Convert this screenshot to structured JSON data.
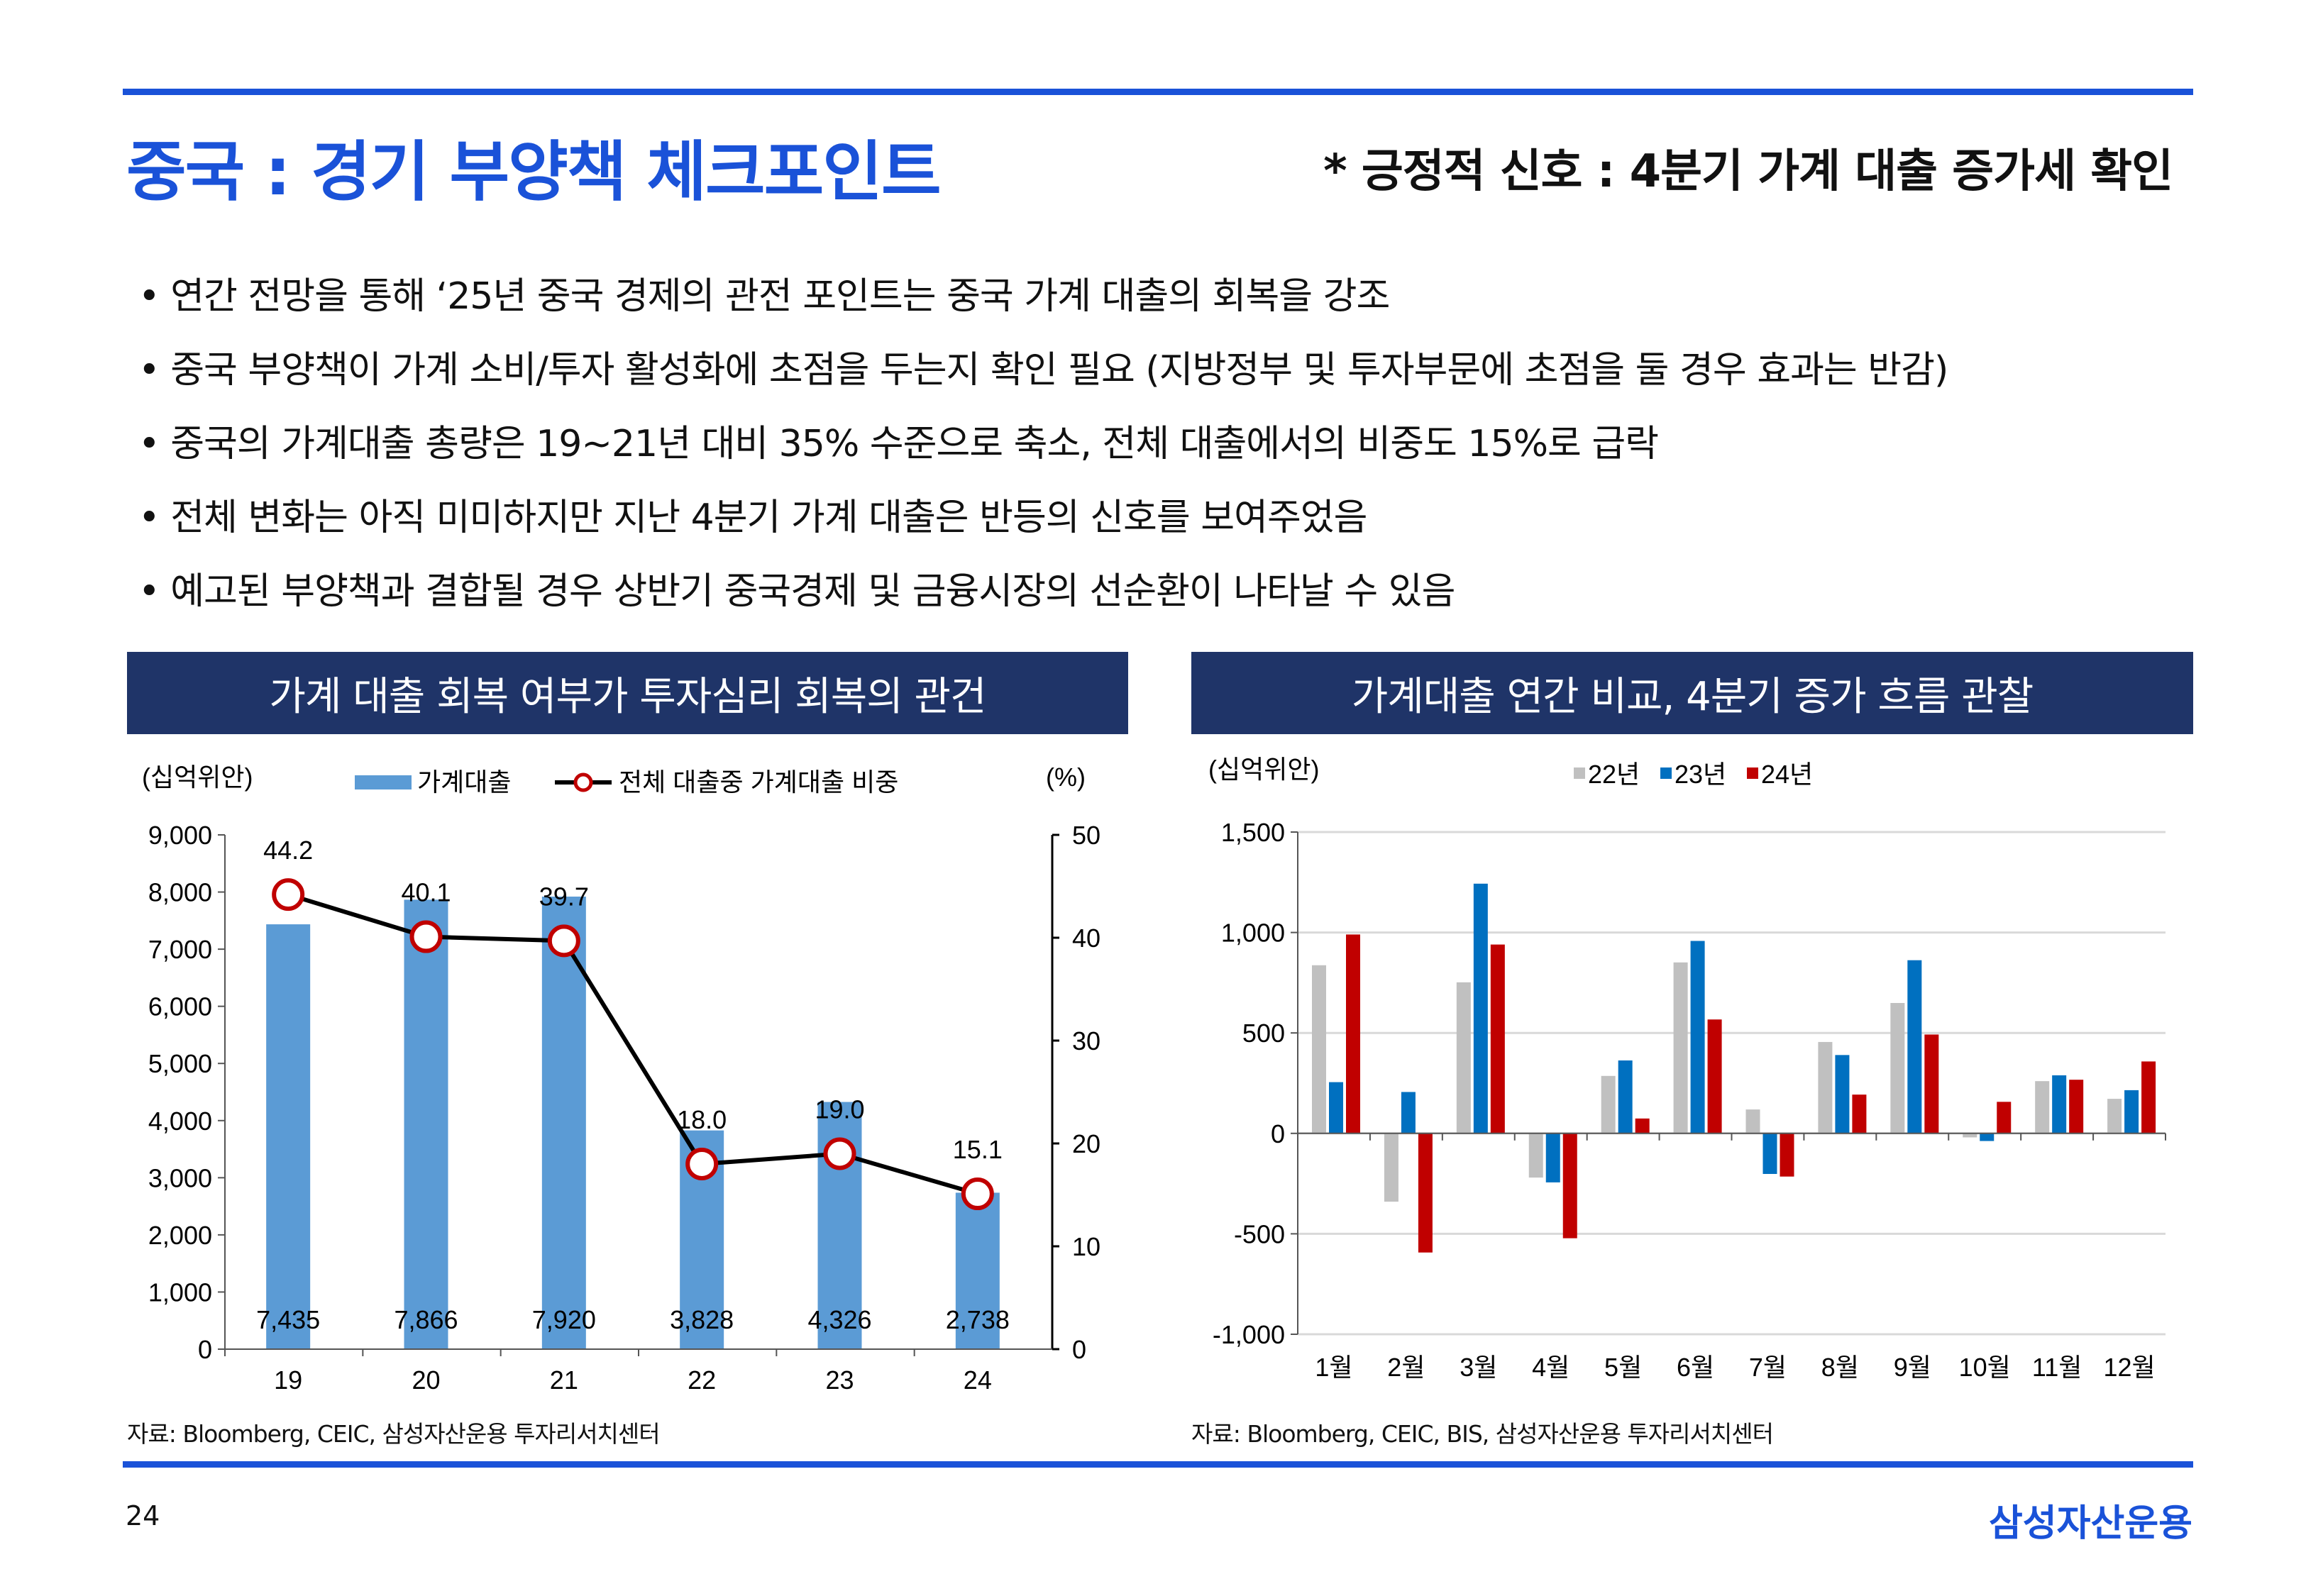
{
  "header": {
    "title": "중국 : 경기 부양책 체크포인트",
    "subtitle": "* 긍정적 신호 : 4분기 가계 대출 증가세 확인"
  },
  "bullets": [
    "• 연간 전망을 통해 ‘25년 중국 경제의 관전 포인트는 중국 가계 대출의 회복을 강조",
    "• 중국 부양책이 가계 소비/투자 활성화에 초점을 두는지 확인 필요 (지방정부 및 투자부문에 초점을 둘 경우 효과는 반감)",
    "• 중국의 가계대출 총량은 19~21년 대비 35% 수준으로 축소, 전체 대출에서의 비중도 15%로 급락",
    "• 전체 변화는 아직 미미하지만 지난 4분기 가계 대출은 반등의 신호를 보여주었음",
    "• 예고된 부양책과 결합될 경우 상반기 중국경제 및 금융시장의 선순환이 나타날 수 있음"
  ],
  "footer": {
    "page": "24",
    "brand": "삼성자산운용"
  },
  "colors": {
    "accent": "#1a52d8",
    "header_bg": "#1f3468",
    "bar": "#5b9bd5",
    "s22": "#c0c0c0",
    "s23": "#0070c0",
    "s24": "#c00000"
  },
  "chart_data": [
    {
      "type": "bar+line",
      "title": "가계 대출 회복 여부가 투자심리 회복의 관건",
      "ylabel": "(십억위안)",
      "y2label": "(%)",
      "categories": [
        "19",
        "20",
        "21",
        "22",
        "23",
        "24"
      ],
      "series": [
        {
          "name": "가계대출",
          "type": "bar",
          "axis": "left",
          "values": [
            7435,
            7866,
            7920,
            3828,
            4326,
            2738
          ],
          "labels": [
            "7,435",
            "7,866",
            "7,920",
            "3,828",
            "4,326",
            "2,738"
          ]
        },
        {
          "name": "전체 대출중 가계대출 비중",
          "type": "line",
          "axis": "right",
          "values": [
            44.2,
            40.1,
            39.7,
            18.0,
            19.0,
            15.1
          ],
          "labels": [
            "44.2",
            "40.1",
            "39.7",
            "18.0",
            "19.0",
            "15.1"
          ]
        }
      ],
      "ylim": [
        0,
        9000
      ],
      "yticks": [
        "0",
        "1,000",
        "2,000",
        "3,000",
        "4,000",
        "5,000",
        "6,000",
        "7,000",
        "8,000",
        "9,000"
      ],
      "y2lim": [
        0,
        50
      ],
      "y2ticks": [
        "0",
        "10",
        "20",
        "30",
        "40",
        "50"
      ],
      "source": "자료: Bloomberg, CEIC, 삼성자산운용 투자리서치센터"
    },
    {
      "type": "bar",
      "title": "가계대출 연간 비교, 4분기 증가 흐름 관찰",
      "ylabel": "(십억위안)",
      "categories": [
        "1월",
        "2월",
        "3월",
        "4월",
        "5월",
        "6월",
        "7월",
        "8월",
        "9월",
        "10월",
        "11월",
        "12월"
      ],
      "series": [
        {
          "name": "22년",
          "values": [
            837,
            -340,
            752,
            -220,
            286,
            851,
            119,
            455,
            649,
            -20,
            260,
            172
          ]
        },
        {
          "name": "23년",
          "values": [
            255,
            206,
            1243,
            -244,
            363,
            958,
            -202,
            390,
            862,
            -38,
            289,
            215
          ]
        },
        {
          "name": "24년",
          "values": [
            990,
            -593,
            940,
            -522,
            74,
            567,
            -215,
            193,
            492,
            157,
            267,
            358
          ]
        }
      ],
      "ylim": [
        -1000,
        1500
      ],
      "yticks": [
        "-1,000",
        "-500",
        "0",
        "500",
        "1,000",
        "1,500"
      ],
      "grid": true,
      "legend": "top",
      "source": "자료: Bloomberg, CEIC, BIS, 삼성자산운용 투자리서치센터"
    }
  ]
}
